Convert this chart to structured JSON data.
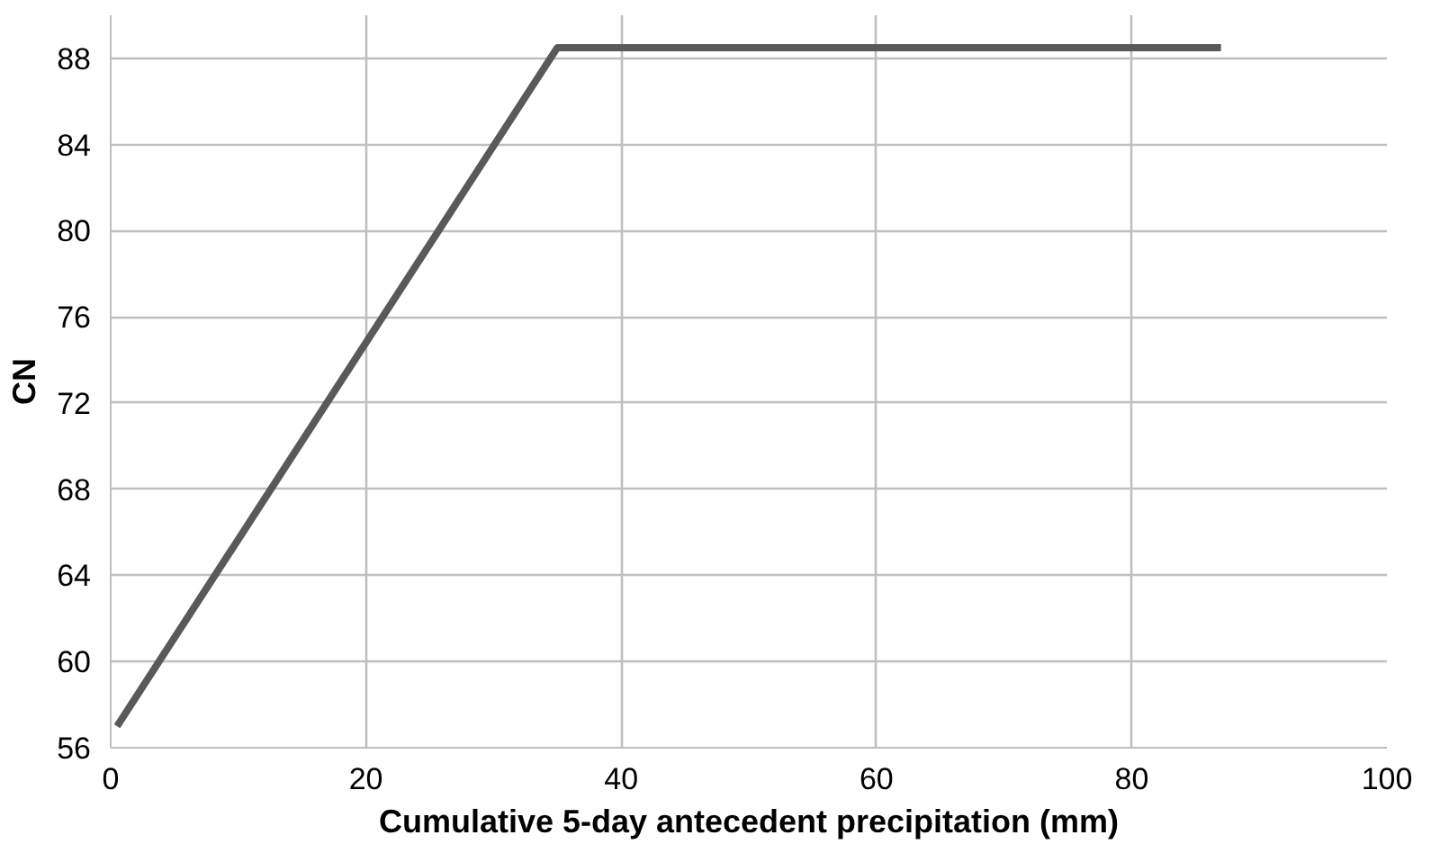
{
  "chart_data": {
    "type": "line",
    "xlabel": "Cumulative 5-day antecedent precipitation (mm)",
    "ylabel": "CN",
    "x": [
      0.5,
      35,
      87
    ],
    "series": [
      {
        "color": "#595959",
        "values": [
          57,
          88.5,
          88.5
        ]
      }
    ],
    "xlim": [
      0,
      100
    ],
    "xticks": [
      0,
      20,
      40,
      60,
      80,
      100
    ],
    "ylim": [
      56,
      90
    ],
    "yticks": [
      56,
      60,
      64,
      68,
      72,
      76,
      80,
      84,
      88
    ],
    "grid": true,
    "marker": "none",
    "line_style": "solid"
  }
}
